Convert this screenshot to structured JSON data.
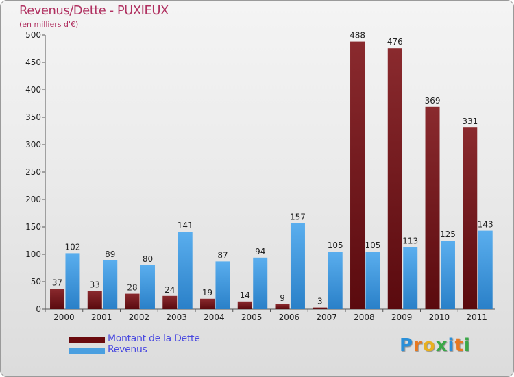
{
  "chart_data": {
    "type": "bar",
    "title": "Revenus/Dette - PUXIEUX",
    "subtitle": "(en milliers d'€)",
    "categories": [
      "2000",
      "2001",
      "2002",
      "2003",
      "2004",
      "2005",
      "2006",
      "2007",
      "2008",
      "2009",
      "2010",
      "2011"
    ],
    "series": [
      {
        "name": "Montant de la Dette",
        "color": "#7a1a1e",
        "values": [
          37,
          33,
          28,
          24,
          19,
          14,
          9,
          3,
          488,
          476,
          369,
          331
        ]
      },
      {
        "name": "Revenus",
        "color": "#4a9fe0",
        "values": [
          102,
          89,
          80,
          141,
          87,
          94,
          157,
          105,
          105,
          113,
          125,
          143
        ]
      }
    ],
    "ylim": [
      0,
      500
    ],
    "yticks": [
      0,
      50,
      100,
      150,
      200,
      250,
      300,
      350,
      400,
      450,
      500
    ],
    "grid": false,
    "legend": "bottom-left"
  },
  "brand": {
    "text": "Proxiti",
    "letters": [
      {
        "ch": "P",
        "color": "#2a8fd8"
      },
      {
        "ch": "r",
        "color": "#e87820"
      },
      {
        "ch": "o",
        "color": "#e8b020"
      },
      {
        "ch": "x",
        "color": "#3aa848"
      },
      {
        "ch": "i",
        "color": "#2a8fd8"
      },
      {
        "ch": "t",
        "color": "#e87820"
      },
      {
        "ch": "i",
        "color": "#3aa848"
      }
    ]
  }
}
